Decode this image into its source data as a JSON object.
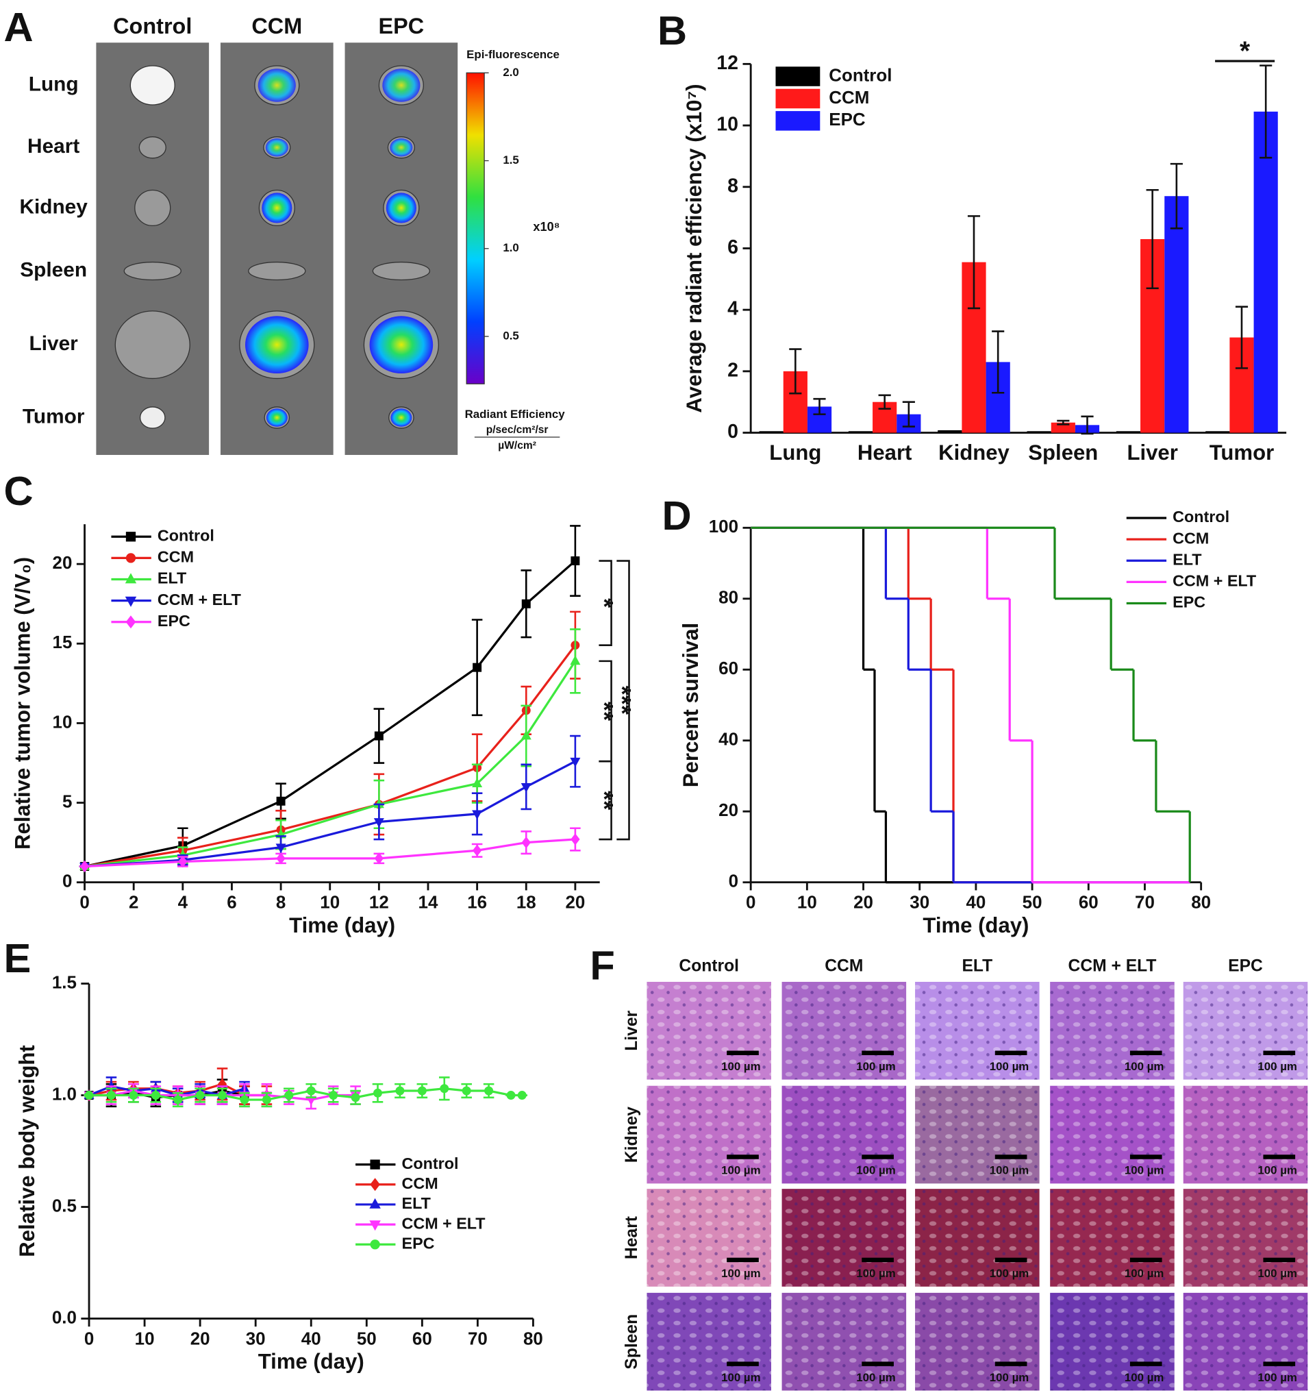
{
  "panel_a": {
    "panel_label": "A",
    "columns": [
      "Control",
      "CCM",
      "EPC"
    ],
    "rows": [
      "Lung",
      "Heart",
      "Kidney",
      "Spleen",
      "Liver",
      "Tumor"
    ],
    "colorbar": {
      "title": "Epi-fluorescence",
      "lim": [
        0.23,
        2.0
      ],
      "ticks": [
        {
          "value": 2.0,
          "label": "2.0"
        },
        1.5,
        {
          "value": 1.0,
          "label": "1.0"
        },
        0.5
      ],
      "multiplier": "x10⁸",
      "quantity": "Radiant Efficiency",
      "unit_numerator": "p/sec/cm²/sr",
      "unit_denominator": "µW/cm²"
    }
  },
  "chart_data": [
    {
      "type": "bar",
      "panel_label": "B",
      "y_label": "Average radiant efficiency (x10⁷)",
      "categories": [
        "Lung",
        "Heart",
        "Kidney",
        "Spleen",
        "Liver",
        "Tumor"
      ],
      "ylim": [
        0,
        12
      ],
      "yticks": [
        0,
        2,
        4,
        6,
        8,
        10,
        12
      ],
      "legend": "upper left",
      "annotations": [
        "*"
      ],
      "series": [
        {
          "name": "Control",
          "color": "#000000",
          "values": [
            0.05,
            0.05,
            0.08,
            0.05,
            0.05,
            0.05
          ]
        },
        {
          "name": "CCM",
          "color": "#ff1a1a",
          "values": [
            2.0,
            1.0,
            5.55,
            0.33,
            6.3,
            3.1
          ],
          "errors": [
            0.72,
            0.22,
            1.5,
            0.06,
            1.6,
            1.0
          ]
        },
        {
          "name": "EPC",
          "color": "#1a1aff",
          "values": [
            0.85,
            0.6,
            2.3,
            0.25,
            7.7,
            10.45
          ],
          "errors": [
            0.25,
            0.4,
            1.0,
            0.28,
            1.05,
            1.5
          ]
        }
      ]
    },
    {
      "type": "line",
      "panel_label": "C",
      "x_label": "Time (day)",
      "y_label": "Relative tumor volume (V/V₀)",
      "x": [
        0,
        4,
        8,
        12,
        16,
        18,
        20
      ],
      "xlim": [
        0,
        21
      ],
      "xticks": [
        0,
        2,
        4,
        6,
        8,
        10,
        12,
        14,
        16,
        18,
        20
      ],
      "ylim": [
        0,
        22.5
      ],
      "yticks": [
        0,
        5,
        10,
        15,
        20
      ],
      "legend": "upper left",
      "annotations": [
        "*",
        "**",
        "**",
        "***"
      ],
      "series": [
        {
          "name": "Control",
          "color": "#000000",
          "marker": "square",
          "values": [
            1,
            2.3,
            5.1,
            9.2,
            13.5,
            17.5,
            20.2
          ],
          "errors": [
            0,
            1.1,
            1.1,
            1.7,
            3.0,
            2.1,
            2.2
          ]
        },
        {
          "name": "CCM",
          "color": "#e8211b",
          "marker": "circle",
          "values": [
            1,
            2.0,
            3.3,
            4.9,
            7.2,
            10.8,
            14.9
          ],
          "errors": [
            0,
            0.8,
            1.2,
            1.9,
            2.1,
            1.5,
            2.1
          ]
        },
        {
          "name": "ELT",
          "color": "#3ee83e",
          "marker": "triangle-up",
          "values": [
            1,
            1.7,
            3.0,
            4.9,
            6.2,
            9.2,
            13.9
          ],
          "errors": [
            0,
            0.5,
            0.9,
            1.5,
            1.2,
            1.9,
            2.0
          ]
        },
        {
          "name": "CCM + ELT",
          "color": "#1a1adb",
          "marker": "triangle-down",
          "values": [
            1,
            1.4,
            2.2,
            3.8,
            4.3,
            6.0,
            7.6
          ],
          "errors": [
            0,
            0.3,
            0.7,
            1.1,
            1.3,
            1.4,
            1.6
          ]
        },
        {
          "name": "EPC",
          "color": "#ff33ff",
          "marker": "diamond",
          "values": [
            1,
            1.3,
            1.5,
            1.5,
            2.0,
            2.5,
            2.7
          ],
          "errors": [
            0,
            0.3,
            0.3,
            0.3,
            0.4,
            0.7,
            0.7
          ]
        }
      ]
    },
    {
      "type": "step",
      "panel_label": "D",
      "x_label": "Time (day)",
      "y_label": "Percent survival",
      "xlim": [
        0,
        80
      ],
      "xticks": [
        0,
        10,
        20,
        30,
        40,
        50,
        60,
        70,
        80
      ],
      "ylim": [
        0,
        100
      ],
      "yticks": [
        0,
        20,
        40,
        60,
        80,
        100
      ],
      "legend": "upper right",
      "series": [
        {
          "name": "Control",
          "color": "#000000",
          "x": [
            0,
            20,
            22,
            24
          ],
          "values": [
            100,
            60,
            20,
            0
          ]
        },
        {
          "name": "CCM",
          "color": "#e8211b",
          "x": [
            0,
            28,
            32,
            36
          ],
          "values": [
            100,
            80,
            60,
            0
          ]
        },
        {
          "name": "ELT",
          "color": "#1a1adb",
          "x": [
            0,
            24,
            28,
            32,
            36
          ],
          "values": [
            100,
            80,
            60,
            20,
            0
          ]
        },
        {
          "name": "CCM + ELT",
          "color": "#ff33ff",
          "x": [
            0,
            42,
            46,
            50
          ],
          "values": [
            100,
            80,
            40,
            0
          ]
        },
        {
          "name": "EPC",
          "color": "#1a8a1a",
          "x": [
            0,
            54,
            64,
            68,
            72,
            78
          ],
          "values": [
            100,
            80,
            60,
            40,
            20,
            0
          ]
        }
      ]
    },
    {
      "type": "line",
      "panel_label": "E",
      "x_label": "Time (day)",
      "y_label": "Relative body weight",
      "xlim": [
        0,
        80
      ],
      "xticks": [
        0,
        10,
        20,
        30,
        40,
        50,
        60,
        70,
        80
      ],
      "ylim": [
        0,
        1.5
      ],
      "yticks": [
        {
          "value": 0,
          "label": "0.0"
        },
        0.5,
        {
          "value": 1,
          "label": "1.0"
        },
        1.5
      ],
      "legend": "center right",
      "series": [
        {
          "name": "Control",
          "color": "#000000",
          "marker": "square",
          "x": [
            0,
            4,
            8,
            12,
            16,
            20,
            24,
            28
          ],
          "values": [
            1.0,
            1.0,
            1.01,
            0.99,
            1.0,
            1.0,
            1.02,
            1.0
          ],
          "errors": [
            0,
            0.05,
            0.04,
            0.04,
            0.03,
            0.04,
            0.05,
            0.04
          ]
        },
        {
          "name": "CCM",
          "color": "#e8211b",
          "marker": "diamond",
          "x": [
            0,
            4,
            8,
            12,
            16,
            20,
            24,
            28,
            32
          ],
          "values": [
            1.0,
            1.02,
            1.03,
            1.03,
            1.01,
            1.02,
            1.05,
            1.0,
            1.0
          ],
          "errors": [
            0,
            0.04,
            0.03,
            0.03,
            0.03,
            0.04,
            0.07,
            0.04,
            0.04
          ]
        },
        {
          "name": "ELT",
          "color": "#1a1adb",
          "marker": "triangle-up",
          "x": [
            0,
            4,
            8,
            12,
            16,
            20,
            24,
            28
          ],
          "values": [
            1.0,
            1.04,
            1.02,
            1.03,
            1.0,
            1.02,
            1.0,
            1.03
          ],
          "errors": [
            0,
            0.04,
            0.03,
            0.03,
            0.03,
            0.03,
            0.04,
            0.03
          ]
        },
        {
          "name": "CCM + ELT",
          "color": "#ff33ff",
          "marker": "triangle-down",
          "x": [
            0,
            4,
            8,
            12,
            16,
            20,
            24,
            28,
            32,
            36,
            40,
            44,
            48
          ],
          "values": [
            1.0,
            1.0,
            1.02,
            1.0,
            1.0,
            1.0,
            1.0,
            1.0,
            1.0,
            0.99,
            0.98,
            1.0,
            1.0
          ],
          "errors": [
            0,
            0.04,
            0.03,
            0.04,
            0.04,
            0.04,
            0.04,
            0.05,
            0.05,
            0.03,
            0.04,
            0.04,
            0.04
          ]
        },
        {
          "name": "EPC",
          "color": "#3ee83e",
          "marker": "circle",
          "x": [
            0,
            4,
            8,
            12,
            16,
            20,
            24,
            28,
            32,
            36,
            40,
            44,
            48,
            52,
            56,
            60,
            64,
            68,
            72,
            76,
            78
          ],
          "values": [
            1.0,
            1.0,
            1.0,
            1.0,
            0.98,
            1.0,
            1.0,
            0.98,
            0.98,
            1.0,
            1.02,
            1.0,
            0.99,
            1.01,
            1.02,
            1.02,
            1.03,
            1.02,
            1.02,
            1.0,
            1.0
          ],
          "errors": [
            0,
            0.03,
            0.03,
            0.03,
            0.03,
            0.03,
            0.03,
            0.03,
            0.03,
            0.03,
            0.03,
            0.03,
            0.03,
            0.04,
            0.03,
            0.03,
            0.05,
            0.03,
            0.03,
            0,
            0
          ]
        }
      ]
    }
  ],
  "panel_f": {
    "panel_label": "F",
    "columns": [
      "Control",
      "CCM",
      "ELT",
      "CCM + ELT",
      "EPC"
    ],
    "rows": [
      "Liver",
      "Kidney",
      "Heart",
      "Spleen"
    ],
    "scale_bar": "100 µm"
  }
}
